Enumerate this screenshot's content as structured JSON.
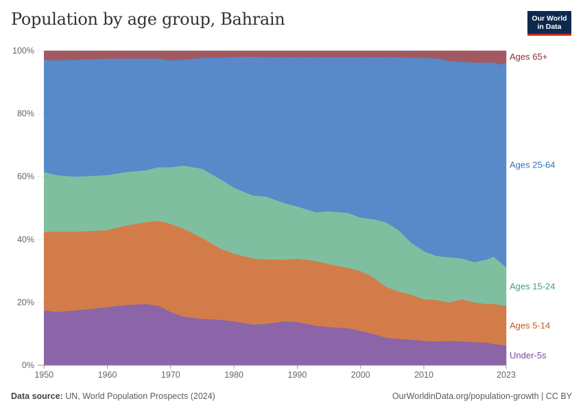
{
  "title": "Population by age group, Bahrain",
  "logo": {
    "line1": "Our World",
    "line2": "in Data"
  },
  "footer": {
    "source_label": "Data source:",
    "source_text": "UN, World Population Prospects (2024)",
    "right_text": "OurWorldinData.org/population-growth | CC BY"
  },
  "chart_data": {
    "type": "area",
    "stacked": true,
    "x": [
      1950,
      1952,
      1955,
      1960,
      1963,
      1966,
      1968,
      1970,
      1972,
      1975,
      1978,
      1980,
      1983,
      1985,
      1988,
      1990,
      1993,
      1995,
      1998,
      2000,
      2002,
      2004,
      2006,
      2008,
      2010,
      2012,
      2014,
      2016,
      2018,
      2020,
      2021,
      2022,
      2023
    ],
    "series": [
      {
        "name": "Under-5s",
        "color": "#8c64a8",
        "label_color": "#7e46a7",
        "values": [
          17.5,
          17,
          17.5,
          18.5,
          19.2,
          19.5,
          19,
          17,
          15.5,
          14.8,
          14.5,
          14,
          13,
          13.2,
          14,
          13.8,
          12.6,
          12.2,
          11.8,
          11,
          10,
          8.8,
          8.4,
          8.2,
          7.8,
          7.6,
          7.8,
          7.6,
          7.4,
          7.2,
          6.8,
          6.6,
          6.3
        ]
      },
      {
        "name": "Ages 5-14",
        "color": "#d27d49",
        "label_color": "#c15c1d",
        "values": [
          25,
          25.5,
          25,
          24.5,
          25.3,
          26,
          27,
          28,
          28,
          25.7,
          22.5,
          21.5,
          21,
          20.5,
          19.6,
          20.1,
          20.6,
          20,
          19.2,
          19,
          18,
          16.2,
          15.1,
          14.3,
          13.2,
          13.2,
          12.2,
          13.4,
          12.6,
          12.3,
          12.8,
          12.6,
          12.7
        ]
      },
      {
        "name": "Ages 15-24",
        "color": "#7fbfa0",
        "label_color": "#3f9f7c",
        "values": [
          19,
          18,
          17.5,
          17.5,
          17,
          16.5,
          17,
          18,
          20,
          22,
          22,
          21,
          20,
          20,
          18,
          16.6,
          15.5,
          16.8,
          17.5,
          17,
          18.5,
          20.5,
          19.5,
          16.5,
          15.3,
          14,
          14.4,
          13,
          12.8,
          14.2,
          15,
          13.7,
          12.2
        ]
      },
      {
        "name": "Ages 25-64",
        "color": "#5889c9",
        "label_color": "#2d72bc",
        "values": [
          35.6,
          36.5,
          37.2,
          37,
          36,
          35.6,
          34.5,
          34,
          33.7,
          35.3,
          38.9,
          41.5,
          44.1,
          44.3,
          46.4,
          47.5,
          49.3,
          49,
          49.5,
          51,
          51.5,
          52.5,
          55,
          58.8,
          61.5,
          62.8,
          62.4,
          62.5,
          63.5,
          62.5,
          61.8,
          62.7,
          65.1
        ]
      },
      {
        "name": "Ages 65+",
        "color": "#a15a62",
        "label_color": "#883039",
        "values": [
          2.9,
          3,
          2.8,
          2.5,
          2.5,
          2.4,
          2.5,
          3,
          2.8,
          2.2,
          2.1,
          2,
          1.9,
          2,
          2,
          2,
          2,
          2,
          2,
          2,
          2,
          2,
          2,
          2.2,
          2.2,
          2.4,
          3.2,
          3.5,
          3.7,
          3.8,
          3.6,
          4.4,
          3.7
        ]
      }
    ],
    "xlim": [
      1949,
      2023
    ],
    "ylim": [
      0,
      100
    ],
    "yticks": [
      "0%",
      "20%",
      "40%",
      "60%",
      "80%",
      "100%"
    ],
    "xticks": [
      "1950",
      "1960",
      "1970",
      "1980",
      "1990",
      "2000",
      "2010",
      "2023"
    ],
    "grid": true,
    "legend": "right, labels placed beside each area"
  }
}
